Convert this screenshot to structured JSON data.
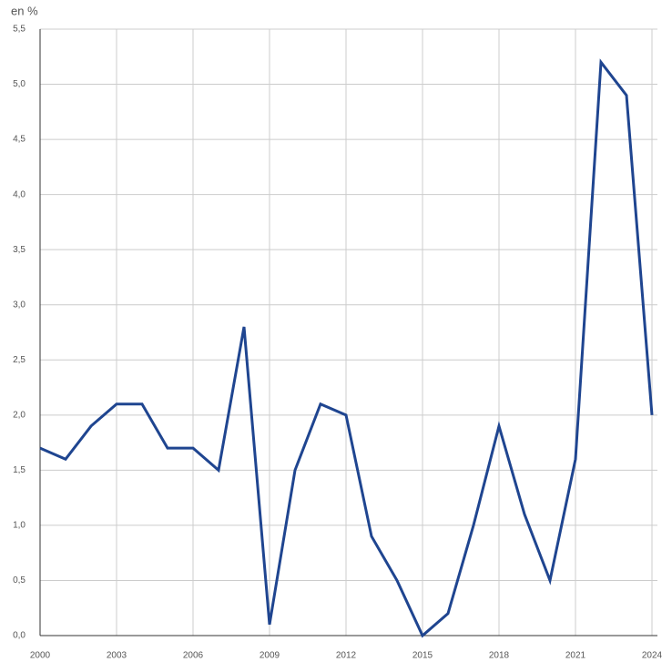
{
  "chart_data": {
    "type": "line",
    "y_label": "en %",
    "x": [
      2000,
      2001,
      2002,
      2003,
      2004,
      2005,
      2006,
      2007,
      2008,
      2009,
      2010,
      2011,
      2012,
      2013,
      2014,
      2015,
      2016,
      2017,
      2018,
      2019,
      2020,
      2021,
      2022,
      2023,
      2024
    ],
    "series": [
      {
        "color": "#1f4590",
        "values": [
          1.7,
          1.6,
          1.9,
          2.1,
          2.1,
          1.7,
          1.7,
          1.5,
          2.8,
          0.1,
          1.5,
          2.1,
          2.0,
          0.9,
          0.5,
          0.0,
          0.2,
          1.0,
          1.9,
          1.1,
          0.5,
          1.6,
          5.2,
          4.9,
          2.0
        ]
      }
    ],
    "xlim": [
      2000,
      2024
    ],
    "xticks": [
      2000,
      2003,
      2006,
      2009,
      2012,
      2015,
      2018,
      2021,
      2024
    ],
    "ylim": [
      0,
      5.5
    ],
    "yticks": [
      {
        "value": 0,
        "label": "0,0"
      },
      {
        "value": 0.5,
        "label": "0,5"
      },
      {
        "value": 1,
        "label": "1,0"
      },
      {
        "value": 1.5,
        "label": "1,5"
      },
      {
        "value": 2,
        "label": "2,0"
      },
      {
        "value": 2.5,
        "label": "2,5"
      },
      {
        "value": 3,
        "label": "3,0"
      },
      {
        "value": 3.5,
        "label": "3,5"
      },
      {
        "value": 4,
        "label": "4,0"
      },
      {
        "value": 4.5,
        "label": "4,5"
      },
      {
        "value": 5,
        "label": "5,0"
      },
      {
        "value": 5.5,
        "label": "5,5"
      }
    ],
    "grid": true
  }
}
